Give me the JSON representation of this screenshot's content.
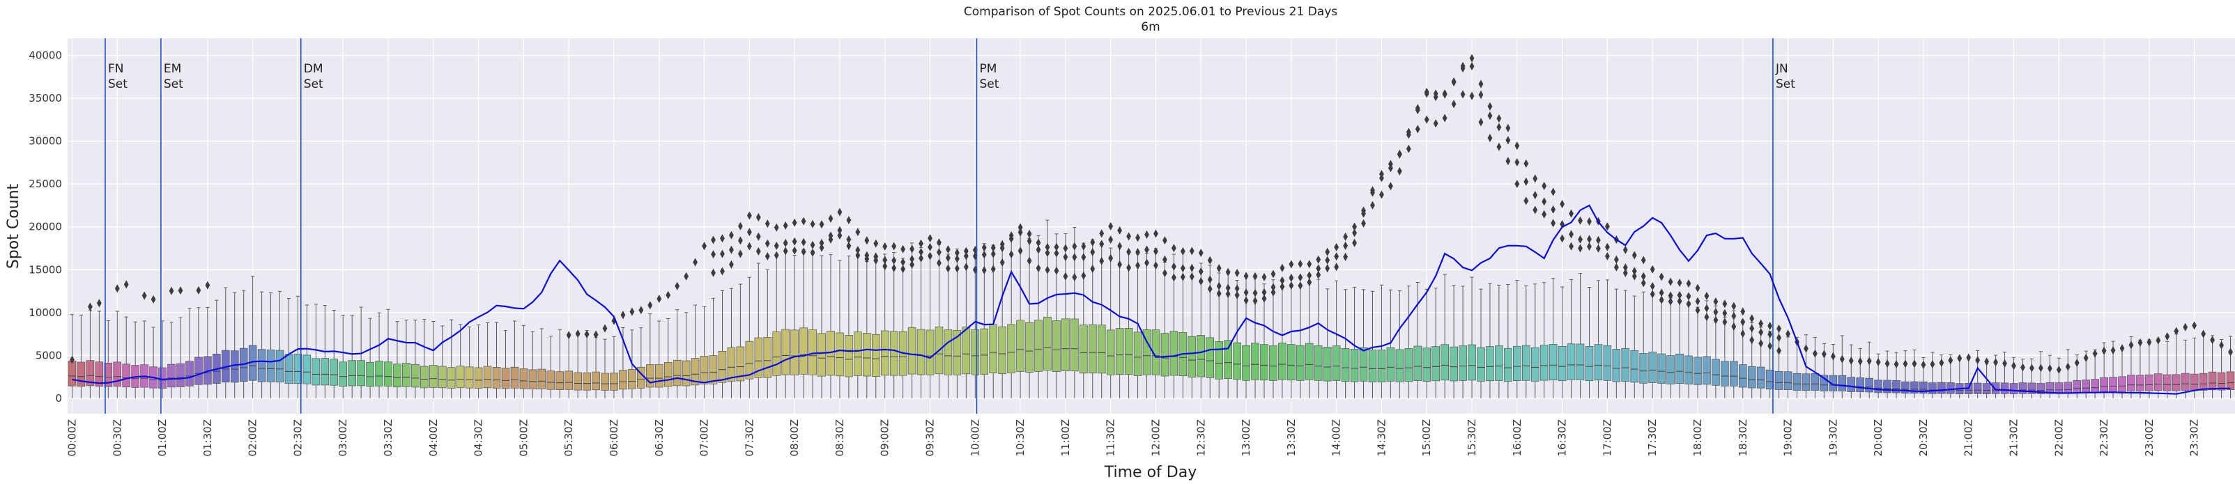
{
  "chart_data": {
    "type": "box+line",
    "title": "Comparison of Spot Counts on 2025.06.01 to Previous 21 Days",
    "subtitle": "6m",
    "xlabel": "Time of Day",
    "ylabel": "Spot Count",
    "ylim": [
      -1800,
      42000
    ],
    "yticks": [
      0,
      5000,
      10000,
      15000,
      20000,
      25000,
      30000,
      35000,
      40000
    ],
    "n_bins": 240,
    "bin_minutes": 6,
    "xtick_labels": [
      "00:00Z",
      "00:30Z",
      "01:00Z",
      "01:30Z",
      "02:00Z",
      "02:30Z",
      "03:00Z",
      "03:30Z",
      "04:00Z",
      "04:30Z",
      "05:00Z",
      "05:30Z",
      "06:00Z",
      "06:30Z",
      "07:00Z",
      "07:30Z",
      "08:00Z",
      "08:30Z",
      "09:00Z",
      "09:30Z",
      "10:00Z",
      "10:30Z",
      "11:00Z",
      "11:30Z",
      "12:00Z",
      "12:30Z",
      "13:00Z",
      "13:30Z",
      "14:00Z",
      "14:30Z",
      "15:00Z",
      "15:30Z",
      "16:00Z",
      "16:30Z",
      "17:00Z",
      "17:30Z",
      "18:00Z",
      "18:30Z",
      "19:00Z",
      "19:30Z",
      "20:00Z",
      "20:30Z",
      "21:00Z",
      "21:30Z",
      "22:00Z",
      "22:30Z",
      "23:00Z",
      "23:30Z"
    ],
    "grid": true,
    "events": [
      {
        "label": "FN\nSet",
        "time": "00:22Z"
      },
      {
        "label": "EM\nSet",
        "time": "00:59Z"
      },
      {
        "label": "DM\nSet",
        "time": "02:32Z"
      },
      {
        "label": "PM\nSet",
        "time": "10:01Z"
      },
      {
        "label": "JN\nSet",
        "time": "18:50Z"
      }
    ],
    "box_median_anchors": [
      [
        0,
        2600
      ],
      [
        1,
        2200
      ],
      [
        1.5,
        3000
      ],
      [
        2,
        3600
      ],
      [
        2.5,
        3200
      ],
      [
        3,
        2600
      ],
      [
        4,
        2300
      ],
      [
        5,
        2000
      ],
      [
        6,
        1700
      ],
      [
        7,
        3000
      ],
      [
        8,
        5000
      ],
      [
        9,
        4700
      ],
      [
        10,
        5200
      ],
      [
        11,
        5700
      ],
      [
        12,
        4800
      ],
      [
        13,
        4000
      ],
      [
        14,
        3600
      ],
      [
        15,
        3600
      ],
      [
        16,
        3800
      ],
      [
        17,
        3700
      ],
      [
        18,
        2900
      ],
      [
        19,
        1800
      ],
      [
        20,
        1200
      ],
      [
        21,
        900
      ],
      [
        22,
        1000
      ],
      [
        23,
        1600
      ],
      [
        24,
        1800
      ]
    ],
    "today_series_anchors": [
      [
        0,
        2200
      ],
      [
        0.33,
        1700
      ],
      [
        0.5,
        2000
      ],
      [
        0.75,
        2600
      ],
      [
        1,
        2200
      ],
      [
        1.25,
        2300
      ],
      [
        1.6,
        3500
      ],
      [
        2,
        4200
      ],
      [
        2.3,
        4300
      ],
      [
        2.5,
        5800
      ],
      [
        2.9,
        5500
      ],
      [
        3.2,
        5200
      ],
      [
        3.5,
        6800
      ],
      [
        3.8,
        6300
      ],
      [
        4,
        5600
      ],
      [
        4.5,
        9700
      ],
      [
        4.75,
        11000
      ],
      [
        5,
        10200
      ],
      [
        5.2,
        12200
      ],
      [
        5.4,
        16100
      ],
      [
        5.7,
        12400
      ],
      [
        6,
        9800
      ],
      [
        6.2,
        4000
      ],
      [
        6.4,
        1800
      ],
      [
        6.7,
        2300
      ],
      [
        7,
        1800
      ],
      [
        7.5,
        2800
      ],
      [
        8,
        4800
      ],
      [
        8.5,
        5500
      ],
      [
        9,
        5800
      ],
      [
        9.5,
        4700
      ],
      [
        10,
        8800
      ],
      [
        10.2,
        8700
      ],
      [
        10.4,
        15200
      ],
      [
        10.6,
        11000
      ],
      [
        11,
        12200
      ],
      [
        11.2,
        11800
      ],
      [
        11.5,
        10200
      ],
      [
        11.8,
        8800
      ],
      [
        12,
        4800
      ],
      [
        12.4,
        5200
      ],
      [
        12.8,
        5800
      ],
      [
        13,
        9400
      ],
      [
        13.4,
        7500
      ],
      [
        13.8,
        8600
      ],
      [
        14,
        7400
      ],
      [
        14.3,
        5500
      ],
      [
        14.6,
        6500
      ],
      [
        14.8,
        9800
      ],
      [
        15,
        12400
      ],
      [
        15.2,
        16800
      ],
      [
        15.5,
        14600
      ],
      [
        15.8,
        17200
      ],
      [
        16,
        18100
      ],
      [
        16.3,
        16800
      ],
      [
        16.5,
        20200
      ],
      [
        16.8,
        22400
      ],
      [
        17,
        18800
      ],
      [
        17.2,
        17800
      ],
      [
        17.5,
        21300
      ],
      [
        17.7,
        19400
      ],
      [
        17.9,
        16000
      ],
      [
        18.1,
        19200
      ],
      [
        18.5,
        18200
      ],
      [
        18.8,
        14200
      ],
      [
        19,
        9400
      ],
      [
        19.2,
        3800
      ],
      [
        19.5,
        1600
      ],
      [
        20,
        1000
      ],
      [
        20.5,
        800
      ],
      [
        21,
        1200
      ],
      [
        21.1,
        3500
      ],
      [
        21.3,
        1000
      ],
      [
        22,
        600
      ],
      [
        22.5,
        700
      ],
      [
        23,
        600
      ],
      [
        23.3,
        500
      ],
      [
        23.6,
        1100
      ],
      [
        24,
        1200
      ]
    ],
    "outlier_cluster_anchors": [
      [
        0.2,
        10600
      ],
      [
        0.55,
        13400
      ],
      [
        0.9,
        12100
      ],
      [
        1.5,
        13400
      ],
      [
        2,
        null
      ],
      [
        5.4,
        7300
      ],
      [
        5.8,
        7800
      ],
      [
        6.2,
        10300
      ],
      [
        6.6,
        11800
      ],
      [
        7,
        17200
      ],
      [
        7.5,
        20400
      ],
      [
        8,
        19600
      ],
      [
        8.5,
        21000
      ],
      [
        9,
        17400
      ],
      [
        9.5,
        18600
      ],
      [
        10,
        17300
      ],
      [
        10.5,
        19800
      ],
      [
        11,
        17100
      ],
      [
        11.5,
        19300
      ],
      [
        12,
        18300
      ],
      [
        12.5,
        16200
      ],
      [
        13,
        13800
      ],
      [
        13.5,
        15400
      ],
      [
        14,
        17600
      ],
      [
        14.5,
        26200
      ],
      [
        15,
        35500
      ],
      [
        15.5,
        38800
      ],
      [
        16,
        28400
      ],
      [
        16.5,
        21700
      ],
      [
        17,
        19300
      ],
      [
        17.5,
        14700
      ],
      [
        18,
        12800
      ],
      [
        18.5,
        10200
      ],
      [
        19,
        7600
      ],
      [
        19.3,
        5300
      ],
      [
        19.8,
        4300
      ],
      [
        20.5,
        3800
      ],
      [
        21,
        4600
      ],
      [
        21.5,
        3700
      ],
      [
        22,
        3300
      ],
      [
        22.5,
        5600
      ],
      [
        23,
        6700
      ],
      [
        23.5,
        8700
      ],
      [
        24,
        4500
      ]
    ]
  }
}
